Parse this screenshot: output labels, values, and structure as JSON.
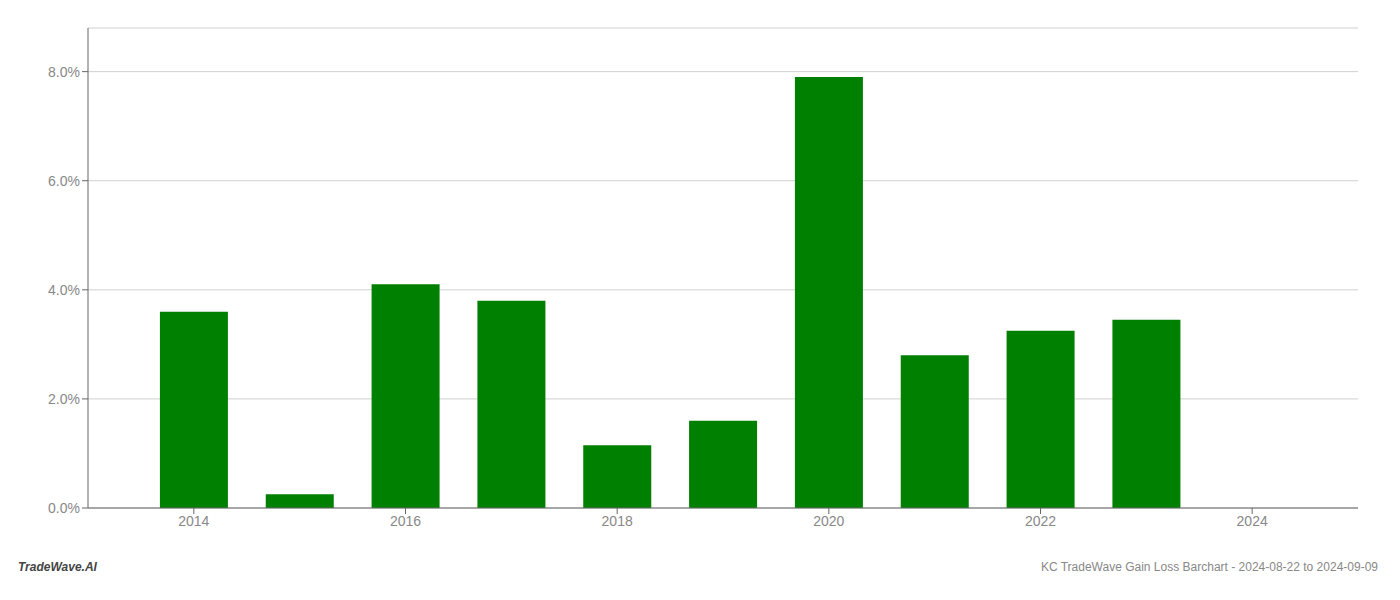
{
  "chart_data": {
    "type": "bar",
    "annotations": [
      "TradeWave.AI",
      "KC TradeWave Gain Loss Barchart - 2024-08-22 to 2024-09-09"
    ],
    "x": [
      2014,
      2015,
      2016,
      2017,
      2018,
      2019,
      2020,
      2021,
      2022,
      2023,
      2024
    ],
    "values": [
      0.036,
      0.0025,
      0.041,
      0.038,
      0.0115,
      0.016,
      0.079,
      0.028,
      0.0325,
      0.0345,
      0.0
    ],
    "color": "#008000",
    "xlim": [
      2013.0,
      2025.0
    ],
    "xticks": [
      2014,
      2016,
      2018,
      2020,
      2022,
      2024
    ],
    "ylim": [
      0.0,
      0.088
    ],
    "yticks": [
      {
        "value": 0.0,
        "label": "0.0%"
      },
      {
        "value": 0.02,
        "label": "2.0%"
      },
      {
        "value": 0.04,
        "label": "4.0%"
      },
      {
        "value": 0.06,
        "label": "6.0%"
      },
      {
        "value": 0.08,
        "label": "8.0%"
      }
    ],
    "grid": true
  }
}
